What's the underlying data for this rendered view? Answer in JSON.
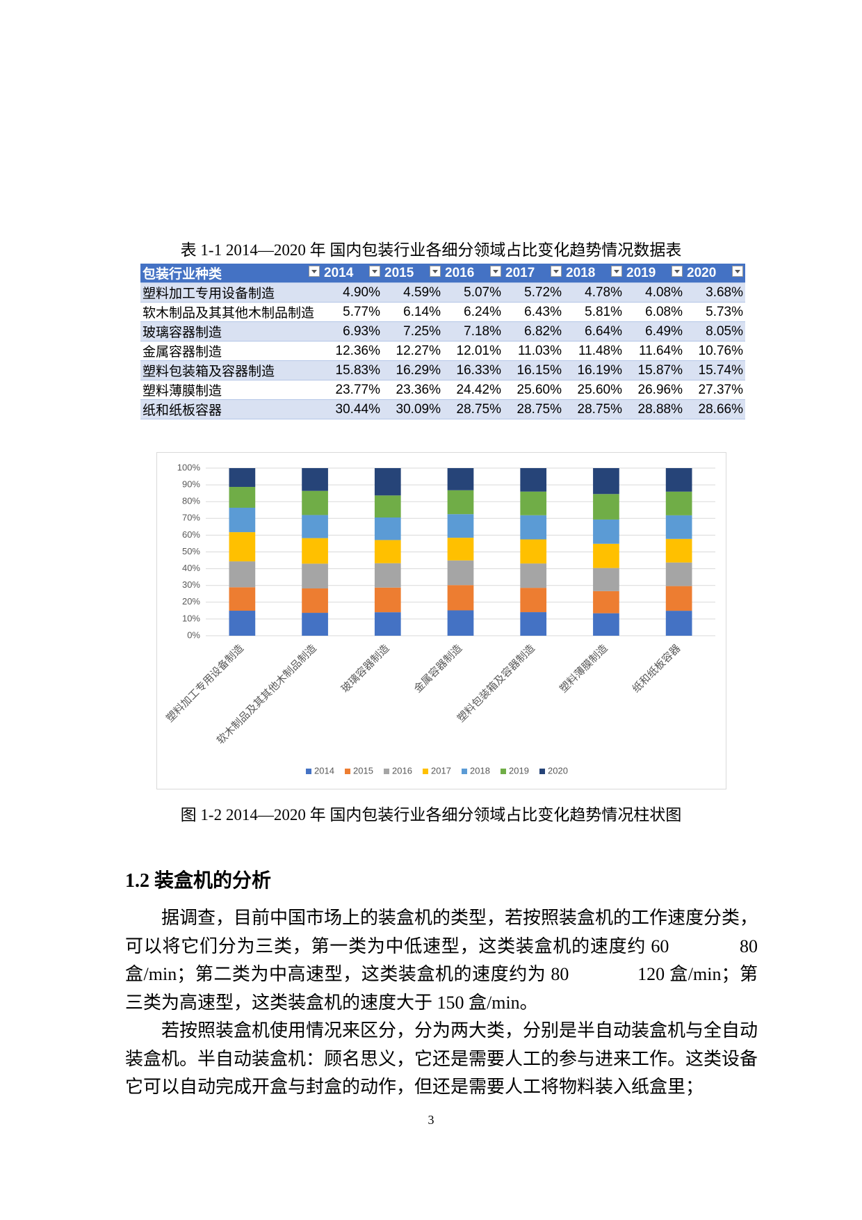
{
  "table_caption": "表 1-1 2014—2020 年 国内包装行业各细分领域占比变化趋势情况数据表",
  "table": {
    "header": [
      "包装行业种类",
      "2014",
      "2015",
      "2016",
      "2017",
      "2018",
      "2019",
      "2020"
    ],
    "rows": [
      [
        "塑料加工专用设备制造",
        "4.90%",
        "4.59%",
        "5.07%",
        "5.72%",
        "4.78%",
        "4.08%",
        "3.68%"
      ],
      [
        "软木制品及其其他木制品制造",
        "5.77%",
        "6.14%",
        "6.24%",
        "6.43%",
        "5.81%",
        "6.08%",
        "5.73%"
      ],
      [
        "玻璃容器制造",
        "6.93%",
        "7.25%",
        "7.18%",
        "6.82%",
        "6.64%",
        "6.49%",
        "8.05%"
      ],
      [
        "金属容器制造",
        "12.36%",
        "12.27%",
        "12.01%",
        "11.03%",
        "11.48%",
        "11.64%",
        "10.76%"
      ],
      [
        "塑料包装箱及容器制造",
        "15.83%",
        "16.29%",
        "16.33%",
        "16.15%",
        "16.19%",
        "15.87%",
        "15.74%"
      ],
      [
        "塑料薄膜制造",
        "23.77%",
        "23.36%",
        "24.42%",
        "25.60%",
        "25.60%",
        "26.96%",
        "27.37%"
      ],
      [
        "纸和纸板容器",
        "30.44%",
        "30.09%",
        "28.75%",
        "28.75%",
        "28.75%",
        "28.88%",
        "28.66%"
      ]
    ]
  },
  "chart_data": {
    "type": "bar",
    "stacking": "percent",
    "categories": [
      "塑料加工专用设备制造",
      "软木制品及其其他木制品制造",
      "玻璃容器制造",
      "金属容器制造",
      "塑料包装箱及容器制造",
      "塑料薄膜制造",
      "纸和纸板容器"
    ],
    "series": [
      {
        "name": "2014",
        "color": "#4472c4",
        "values": [
          4.9,
          5.77,
          6.93,
          12.36,
          15.83,
          23.77,
          30.44
        ]
      },
      {
        "name": "2015",
        "color": "#ed7d31",
        "values": [
          4.59,
          6.14,
          7.25,
          12.27,
          16.29,
          23.36,
          30.09
        ]
      },
      {
        "name": "2016",
        "color": "#a5a5a5",
        "values": [
          5.07,
          6.24,
          7.18,
          12.01,
          16.33,
          24.42,
          28.75
        ]
      },
      {
        "name": "2017",
        "color": "#ffc000",
        "values": [
          5.72,
          6.43,
          6.82,
          11.03,
          16.15,
          25.6,
          28.75
        ]
      },
      {
        "name": "2018",
        "color": "#5b9bd5",
        "values": [
          4.78,
          5.81,
          6.64,
          11.48,
          16.19,
          25.6,
          28.75
        ]
      },
      {
        "name": "2019",
        "color": "#70ad47",
        "values": [
          4.08,
          6.08,
          6.49,
          11.64,
          15.87,
          26.96,
          28.88
        ]
      },
      {
        "name": "2020",
        "color": "#264478",
        "values": [
          3.68,
          5.73,
          8.05,
          10.76,
          15.74,
          27.37,
          28.66
        ]
      }
    ],
    "ylim": [
      0,
      100
    ],
    "yticks": [
      {
        "value": 0,
        "label": "0%"
      },
      {
        "value": 10,
        "label": "10%"
      },
      {
        "value": 20,
        "label": "20%"
      },
      {
        "value": 30,
        "label": "30%"
      },
      {
        "value": 40,
        "label": "40%"
      },
      {
        "value": 50,
        "label": "50%"
      },
      {
        "value": 60,
        "label": "60%"
      },
      {
        "value": 70,
        "label": "70%"
      },
      {
        "value": 80,
        "label": "80%"
      },
      {
        "value": 90,
        "label": "90%"
      },
      {
        "value": 100,
        "label": "100%"
      }
    ],
    "grid": true,
    "legend": "bottom"
  },
  "figure_caption": "图 1-2 2014—2020 年 国内包装行业各细分领域占比变化趋势情况柱状图",
  "section": {
    "heading": "1.2 装盒机的分析",
    "paragraphs": [
      "据调查，目前中国市场上的装盒机的类型，若按照装盒机的工作速度分类，可以将它们分为三类，第一类为中低速型，这类装盒机的速度约 60              80 盒/min；第二类为中高速型，这类装盒机的速度约为 80              120 盒/min；第三类为高速型，这类装盒机的速度大于 150 盒/min。",
      "若按照装盒机使用情况来区分，分为两大类，分别是半自动装盒机与全自动装盒机。半自动装盒机：顾名思义，它还是需要人工的参与进来工作。这类设备它可以自动完成开盒与封盒的动作，但还是需要人工将物料装入纸盒里；"
    ]
  },
  "page_number": "3"
}
